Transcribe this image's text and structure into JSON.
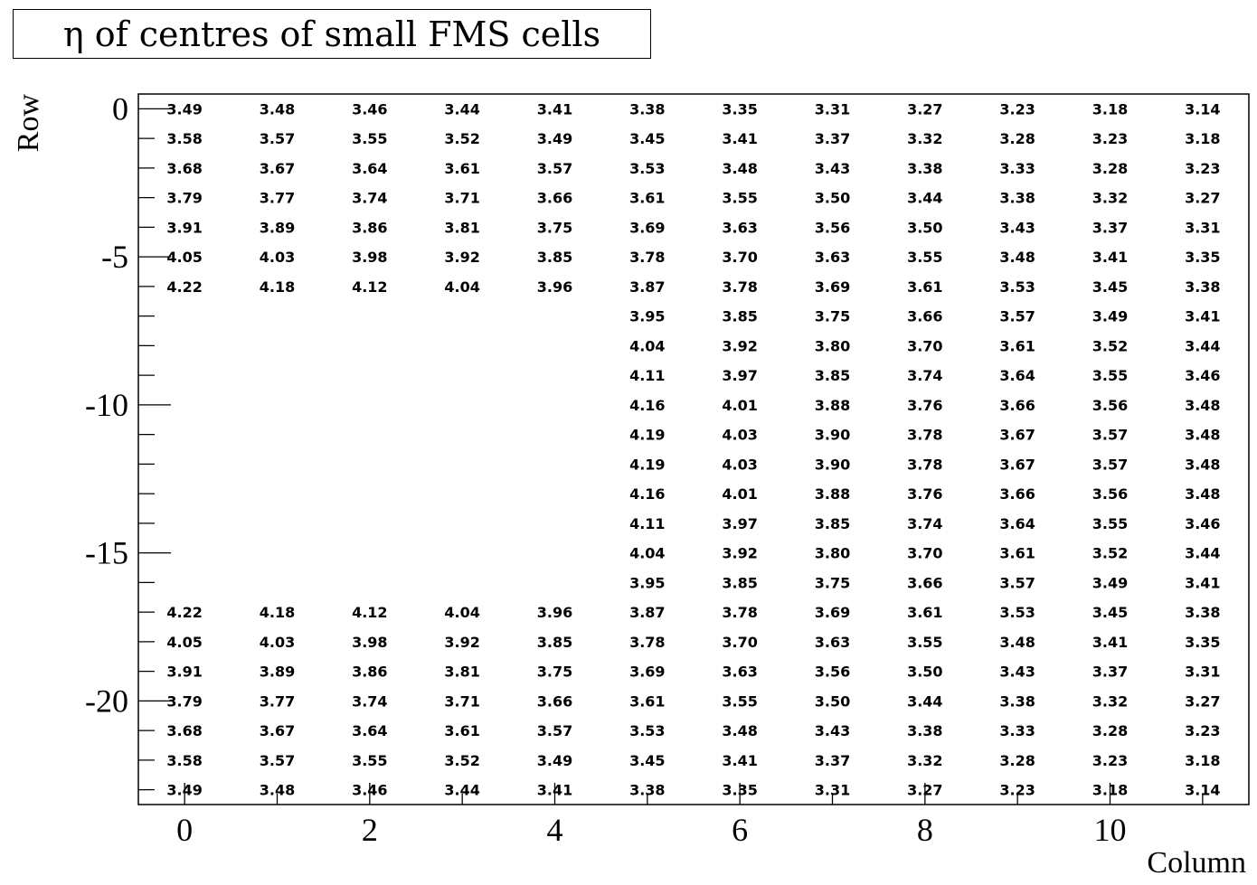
{
  "chart_data": {
    "type": "heatmap",
    "title": "η of centres of small FMS cells",
    "xlabel": "Column",
    "ylabel": "Row",
    "xlim": [
      -0.5,
      11.5
    ],
    "ylim": [
      -23.5,
      0.5
    ],
    "x_ticks": [
      0,
      2,
      4,
      6,
      8,
      10
    ],
    "y_ticks": [
      0,
      -5,
      -10,
      -15,
      -20
    ],
    "x_tick_labels": [
      "0",
      "2",
      "4",
      "6",
      "8",
      "10"
    ],
    "y_tick_labels": [
      "0",
      "-5",
      "-10",
      "-15",
      "-20"
    ],
    "columns": [
      0,
      1,
      2,
      3,
      4,
      5,
      6,
      7,
      8,
      9,
      10,
      11
    ],
    "rows": [
      0,
      -1,
      -2,
      -3,
      -4,
      -5,
      -6,
      -7,
      -8,
      -9,
      -10,
      -11,
      -12,
      -13,
      -14,
      -15,
      -16,
      -17,
      -18,
      -19,
      -20,
      -21,
      -22,
      -23
    ],
    "values": [
      [
        "3.49",
        "3.48",
        "3.46",
        "3.44",
        "3.41",
        "3.38",
        "3.35",
        "3.31",
        "3.27",
        "3.23",
        "3.18",
        "3.14"
      ],
      [
        "3.58",
        "3.57",
        "3.55",
        "3.52",
        "3.49",
        "3.45",
        "3.41",
        "3.37",
        "3.32",
        "3.28",
        "3.23",
        "3.18"
      ],
      [
        "3.68",
        "3.67",
        "3.64",
        "3.61",
        "3.57",
        "3.53",
        "3.48",
        "3.43",
        "3.38",
        "3.33",
        "3.28",
        "3.23"
      ],
      [
        "3.79",
        "3.77",
        "3.74",
        "3.71",
        "3.66",
        "3.61",
        "3.55",
        "3.50",
        "3.44",
        "3.38",
        "3.32",
        "3.27"
      ],
      [
        "3.91",
        "3.89",
        "3.86",
        "3.81",
        "3.75",
        "3.69",
        "3.63",
        "3.56",
        "3.50",
        "3.43",
        "3.37",
        "3.31"
      ],
      [
        "4.05",
        "4.03",
        "3.98",
        "3.92",
        "3.85",
        "3.78",
        "3.70",
        "3.63",
        "3.55",
        "3.48",
        "3.41",
        "3.35"
      ],
      [
        "4.22",
        "4.18",
        "4.12",
        "4.04",
        "3.96",
        "3.87",
        "3.78",
        "3.69",
        "3.61",
        "3.53",
        "3.45",
        "3.38"
      ],
      [
        null,
        null,
        null,
        null,
        null,
        "3.95",
        "3.85",
        "3.75",
        "3.66",
        "3.57",
        "3.49",
        "3.41"
      ],
      [
        null,
        null,
        null,
        null,
        null,
        "4.04",
        "3.92",
        "3.80",
        "3.70",
        "3.61",
        "3.52",
        "3.44"
      ],
      [
        null,
        null,
        null,
        null,
        null,
        "4.11",
        "3.97",
        "3.85",
        "3.74",
        "3.64",
        "3.55",
        "3.46"
      ],
      [
        null,
        null,
        null,
        null,
        null,
        "4.16",
        "4.01",
        "3.88",
        "3.76",
        "3.66",
        "3.56",
        "3.48"
      ],
      [
        null,
        null,
        null,
        null,
        null,
        "4.19",
        "4.03",
        "3.90",
        "3.78",
        "3.67",
        "3.57",
        "3.48"
      ],
      [
        null,
        null,
        null,
        null,
        null,
        "4.19",
        "4.03",
        "3.90",
        "3.78",
        "3.67",
        "3.57",
        "3.48"
      ],
      [
        null,
        null,
        null,
        null,
        null,
        "4.16",
        "4.01",
        "3.88",
        "3.76",
        "3.66",
        "3.56",
        "3.48"
      ],
      [
        null,
        null,
        null,
        null,
        null,
        "4.11",
        "3.97",
        "3.85",
        "3.74",
        "3.64",
        "3.55",
        "3.46"
      ],
      [
        null,
        null,
        null,
        null,
        null,
        "4.04",
        "3.92",
        "3.80",
        "3.70",
        "3.61",
        "3.52",
        "3.44"
      ],
      [
        null,
        null,
        null,
        null,
        null,
        "3.95",
        "3.85",
        "3.75",
        "3.66",
        "3.57",
        "3.49",
        "3.41"
      ],
      [
        "4.22",
        "4.18",
        "4.12",
        "4.04",
        "3.96",
        "3.87",
        "3.78",
        "3.69",
        "3.61",
        "3.53",
        "3.45",
        "3.38"
      ],
      [
        "4.05",
        "4.03",
        "3.98",
        "3.92",
        "3.85",
        "3.78",
        "3.70",
        "3.63",
        "3.55",
        "3.48",
        "3.41",
        "3.35"
      ],
      [
        "3.91",
        "3.89",
        "3.86",
        "3.81",
        "3.75",
        "3.69",
        "3.63",
        "3.56",
        "3.50",
        "3.43",
        "3.37",
        "3.31"
      ],
      [
        "3.79",
        "3.77",
        "3.74",
        "3.71",
        "3.66",
        "3.61",
        "3.55",
        "3.50",
        "3.44",
        "3.38",
        "3.32",
        "3.27"
      ],
      [
        "3.68",
        "3.67",
        "3.64",
        "3.61",
        "3.57",
        "3.53",
        "3.48",
        "3.43",
        "3.38",
        "3.33",
        "3.28",
        "3.23"
      ],
      [
        "3.58",
        "3.57",
        "3.55",
        "3.52",
        "3.49",
        "3.45",
        "3.41",
        "3.37",
        "3.32",
        "3.28",
        "3.23",
        "3.18"
      ],
      [
        "3.49",
        "3.48",
        "3.46",
        "3.44",
        "3.41",
        "3.38",
        "3.35",
        "3.31",
        "3.27",
        "3.23",
        "3.18",
        "3.14"
      ]
    ],
    "grid": false,
    "legend": "none"
  }
}
